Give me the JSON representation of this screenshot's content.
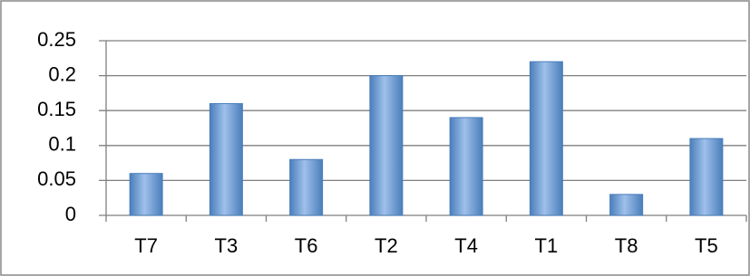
{
  "chart_data": {
    "type": "bar",
    "categories": [
      "T7",
      "T3",
      "T6",
      "T2",
      "T4",
      "T1",
      "T8",
      "T5"
    ],
    "values": [
      0.06,
      0.16,
      0.08,
      0.2,
      0.14,
      0.22,
      0.03,
      0.11
    ],
    "color": "#4a7ebb",
    "ylim": [
      0,
      0.25
    ],
    "yticks": [
      0,
      0.05,
      0.1,
      0.15,
      0.2,
      0.25
    ],
    "grid": true
  }
}
